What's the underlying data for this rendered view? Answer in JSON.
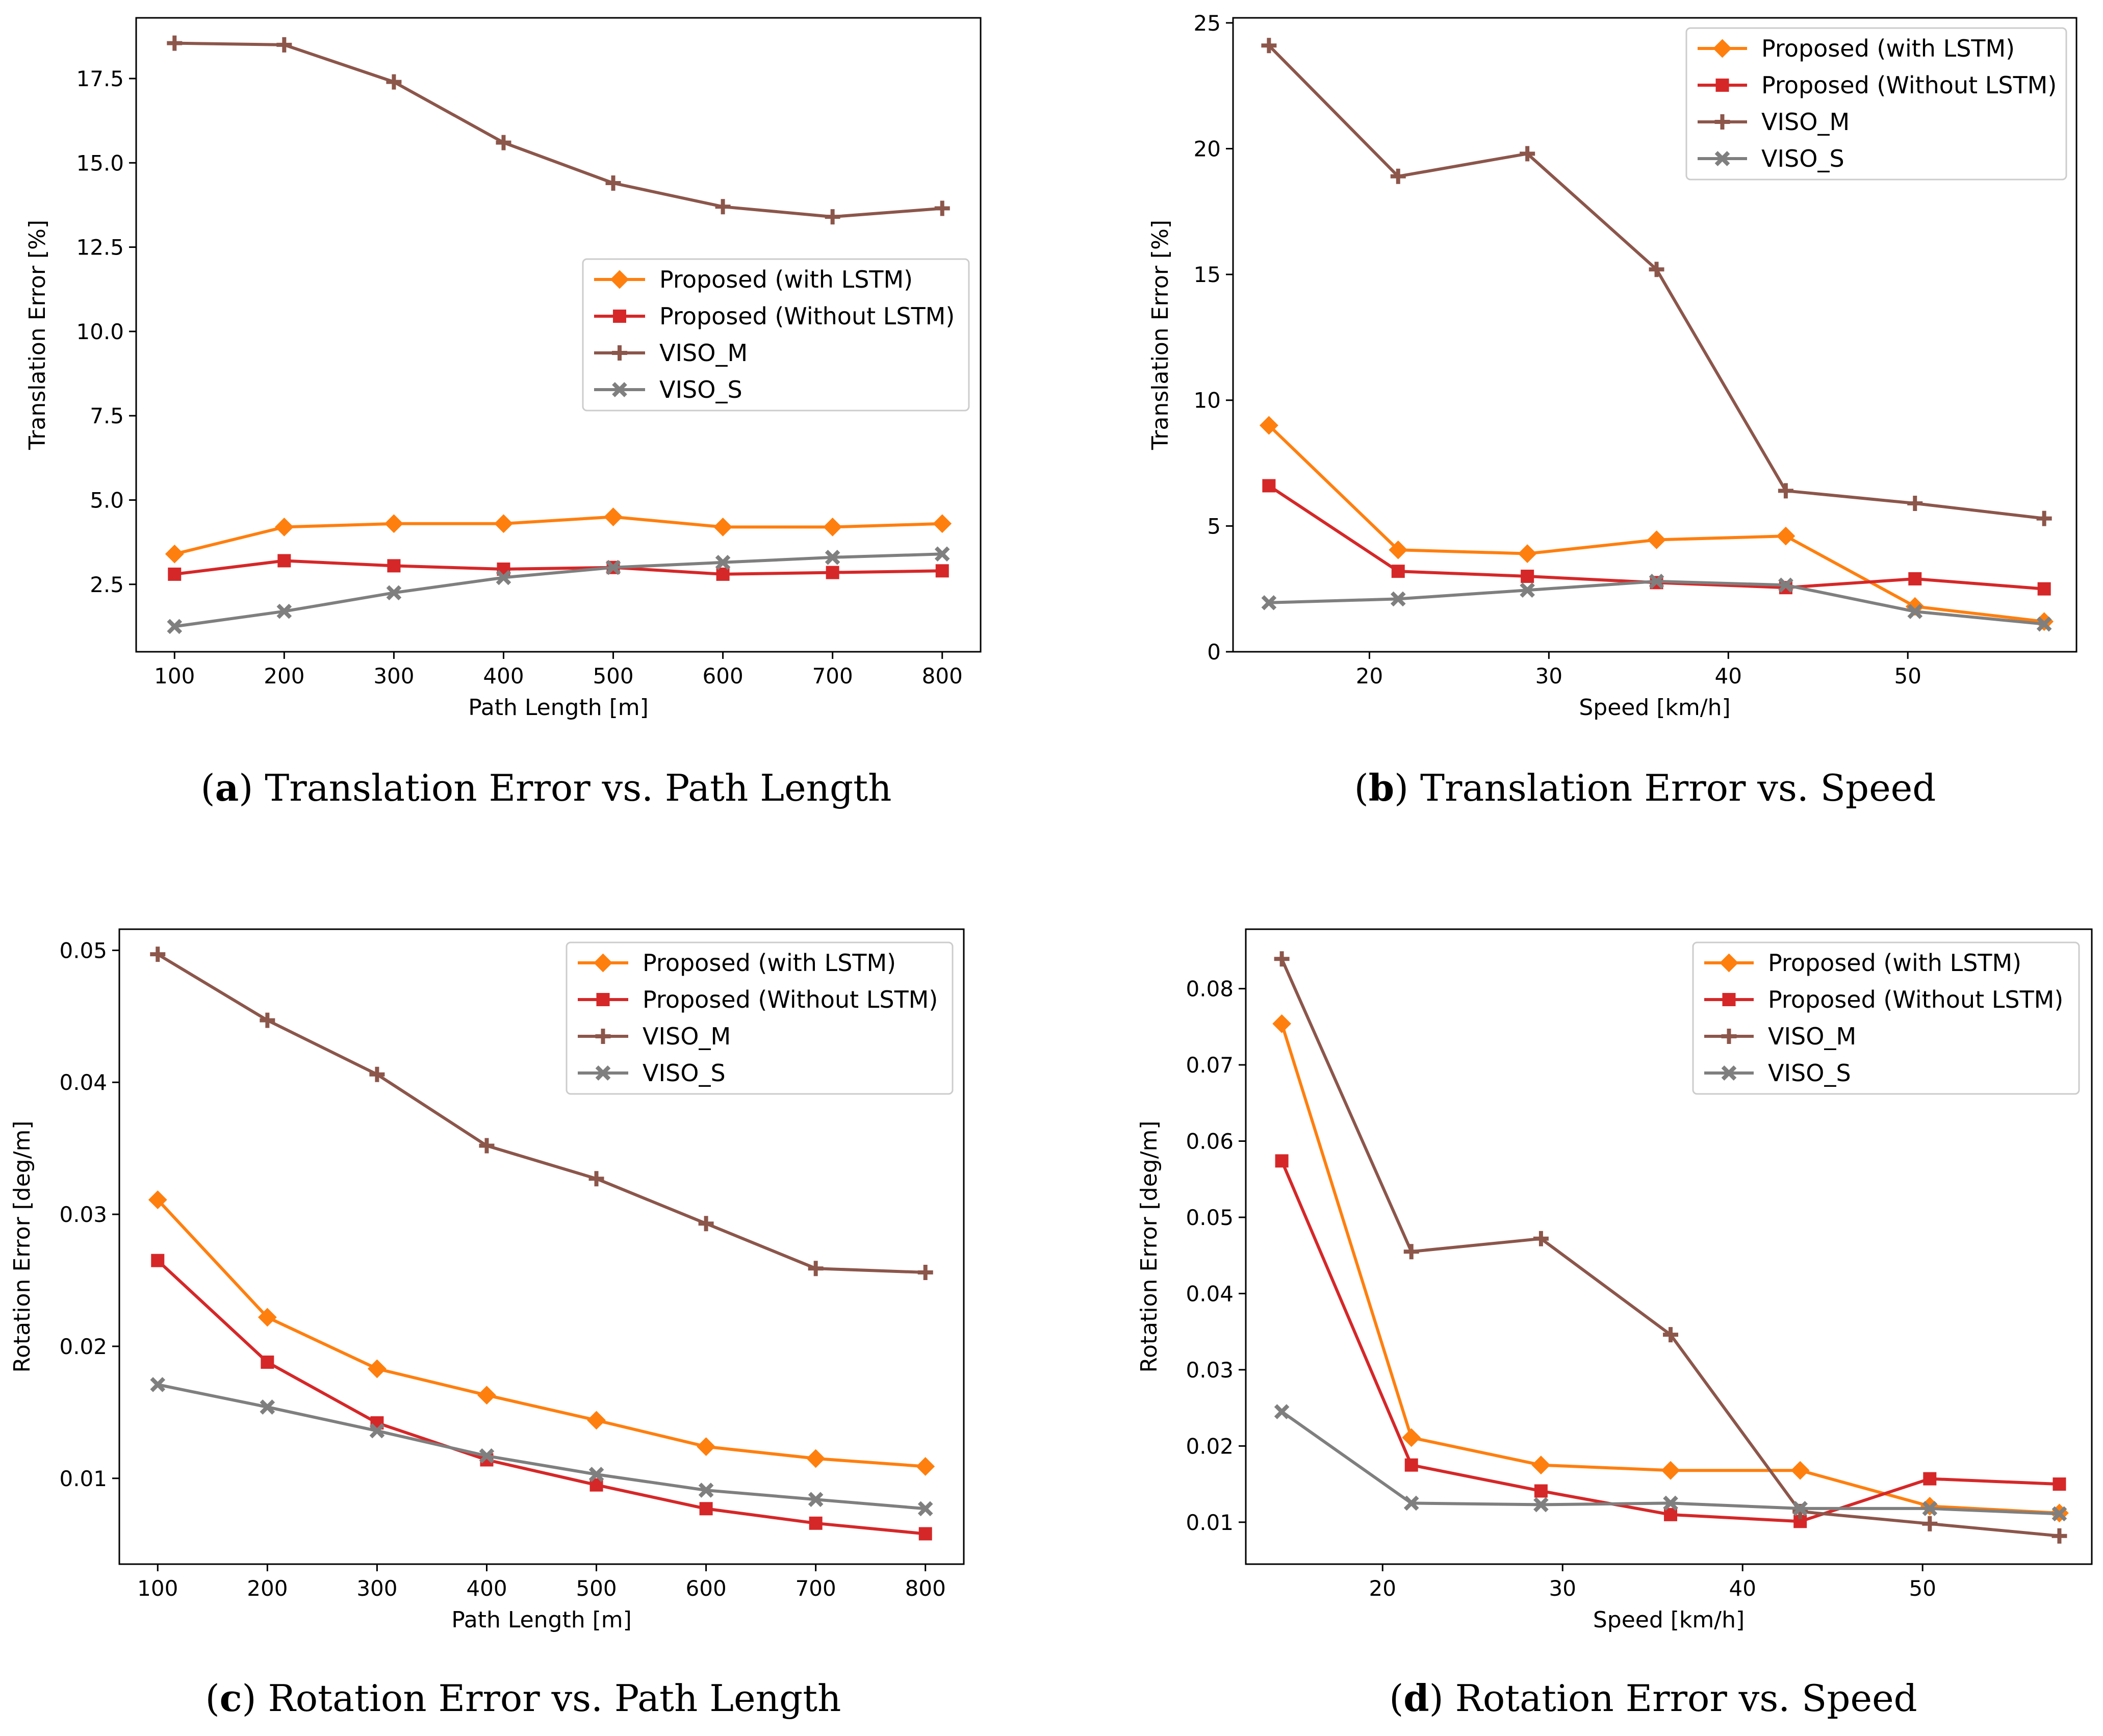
{
  "chart_data": [
    {
      "id": "a",
      "type": "line",
      "caption_letter": "a",
      "caption": "Translation Error vs. Path Length",
      "title": "",
      "xlabel": "Path Length [m]",
      "ylabel": "Translation Error [%]",
      "xlim": [
        65,
        835
      ],
      "ylim": [
        0.5,
        19.3
      ],
      "xticks": [
        100,
        200,
        300,
        400,
        500,
        600,
        700,
        800
      ],
      "yticks": [
        2.5,
        5.0,
        7.5,
        10.0,
        12.5,
        15.0,
        17.5
      ],
      "ytick_labels": [
        "2.5",
        "5.0",
        "7.5",
        "10.0",
        "12.5",
        "15.0",
        "17.5"
      ],
      "xtick_labels": [
        "100",
        "200",
        "300",
        "400",
        "500",
        "600",
        "700",
        "800"
      ],
      "legend_placement": "center-right",
      "x": [
        100,
        200,
        300,
        400,
        500,
        600,
        700,
        800
      ],
      "series": [
        {
          "name": "Proposed (with LSTM)",
          "values": [
            3.4,
            4.2,
            4.3,
            4.3,
            4.5,
            4.2,
            4.2,
            4.3
          ]
        },
        {
          "name": "Proposed (Without LSTM)",
          "values": [
            2.8,
            3.2,
            3.05,
            2.95,
            3.0,
            2.8,
            2.85,
            2.9
          ]
        },
        {
          "name": "VISO_M",
          "values": [
            18.55,
            18.5,
            17.4,
            15.6,
            14.4,
            13.7,
            13.4,
            13.65
          ]
        },
        {
          "name": "VISO_S",
          "values": [
            1.25,
            1.7,
            2.25,
            2.7,
            3.0,
            3.15,
            3.3,
            3.4
          ]
        }
      ]
    },
    {
      "id": "b",
      "type": "line",
      "caption_letter": "b",
      "caption": "Translation Error vs. Speed",
      "title": "",
      "xlabel": "Speed [km/h]",
      "ylabel": "Translation Error [%]",
      "xlim": [
        12.4,
        59.4
      ],
      "ylim": [
        0,
        25.2
      ],
      "xticks": [
        20,
        30,
        40,
        50
      ],
      "yticks": [
        0,
        5,
        10,
        15,
        20,
        25
      ],
      "xtick_labels": [
        "20",
        "30",
        "40",
        "50"
      ],
      "ytick_labels": [
        "0",
        "5",
        "10",
        "15",
        "20",
        "25"
      ],
      "legend_placement": "top-right",
      "x": [
        14.4,
        21.6,
        28.8,
        36.0,
        43.2,
        50.4,
        57.6
      ],
      "series": [
        {
          "name": "Proposed (with LSTM)",
          "values": [
            9.0,
            4.05,
            3.9,
            4.45,
            4.6,
            1.8,
            1.2
          ]
        },
        {
          "name": "Proposed (Without LSTM)",
          "values": [
            6.6,
            3.2,
            3.0,
            2.75,
            2.55,
            2.9,
            2.5
          ]
        },
        {
          "name": "VISO_M",
          "values": [
            24.1,
            18.9,
            19.8,
            15.2,
            6.4,
            5.9,
            5.3
          ]
        },
        {
          "name": "VISO_S",
          "values": [
            1.95,
            2.1,
            2.45,
            2.8,
            2.65,
            1.6,
            1.1
          ]
        }
      ]
    },
    {
      "id": "c",
      "type": "line",
      "caption_letter": "c",
      "caption": "Rotation Error vs. Path Length",
      "title": "",
      "xlabel": "Path Length [m]",
      "ylabel": "Rotation Error [deg/m]",
      "xlim": [
        65,
        835
      ],
      "ylim": [
        0.0035,
        0.0516
      ],
      "xticks": [
        100,
        200,
        300,
        400,
        500,
        600,
        700,
        800
      ],
      "yticks": [
        0.01,
        0.02,
        0.03,
        0.04,
        0.05
      ],
      "xtick_labels": [
        "100",
        "200",
        "300",
        "400",
        "500",
        "600",
        "700",
        "800"
      ],
      "ytick_labels": [
        "0.01",
        "0.02",
        "0.03",
        "0.04",
        "0.05"
      ],
      "legend_placement": "top-right",
      "x": [
        100,
        200,
        300,
        400,
        500,
        600,
        700,
        800
      ],
      "series": [
        {
          "name": "Proposed (with LSTM)",
          "values": [
            0.0311,
            0.0222,
            0.0183,
            0.0163,
            0.0144,
            0.0124,
            0.0115,
            0.0109
          ]
        },
        {
          "name": "Proposed (Without LSTM)",
          "values": [
            0.0265,
            0.0188,
            0.0142,
            0.0114,
            0.0095,
            0.0077,
            0.0066,
            0.0058
          ]
        },
        {
          "name": "VISO_M",
          "values": [
            0.0497,
            0.0447,
            0.0406,
            0.0352,
            0.0327,
            0.0293,
            0.0259,
            0.0256
          ]
        },
        {
          "name": "VISO_S",
          "values": [
            0.0171,
            0.0154,
            0.0136,
            0.0117,
            0.0103,
            0.0091,
            0.0084,
            0.0077
          ]
        }
      ]
    },
    {
      "id": "d",
      "type": "line",
      "caption_letter": "d",
      "caption": "Rotation Error vs. Speed",
      "title": "",
      "xlabel": "Speed [km/h]",
      "ylabel": "Rotation Error [deg/m]",
      "xlim": [
        12.4,
        59.4
      ],
      "ylim": [
        0.0045,
        0.0878
      ],
      "xticks": [
        20,
        30,
        40,
        50
      ],
      "yticks": [
        0.01,
        0.02,
        0.03,
        0.04,
        0.05,
        0.06,
        0.07,
        0.08
      ],
      "xtick_labels": [
        "20",
        "30",
        "40",
        "50"
      ],
      "ytick_labels": [
        "0.01",
        "0.02",
        "0.03",
        "0.04",
        "0.05",
        "0.06",
        "0.07",
        "0.08"
      ],
      "legend_placement": "top-right",
      "x": [
        14.4,
        21.6,
        28.8,
        36.0,
        43.2,
        50.4,
        57.6
      ],
      "series": [
        {
          "name": "Proposed (with LSTM)",
          "values": [
            0.0754,
            0.0211,
            0.0175,
            0.0168,
            0.0168,
            0.0121,
            0.0112
          ]
        },
        {
          "name": "Proposed (Without LSTM)",
          "values": [
            0.0574,
            0.0175,
            0.0141,
            0.011,
            0.0101,
            0.0157,
            0.015
          ]
        },
        {
          "name": "VISO_M",
          "values": [
            0.0839,
            0.0455,
            0.0472,
            0.0346,
            0.0114,
            0.0098,
            0.0082
          ]
        },
        {
          "name": "VISO_S",
          "values": [
            0.0245,
            0.0125,
            0.0123,
            0.0125,
            0.0118,
            0.0118,
            0.0111
          ]
        }
      ]
    }
  ],
  "styles": {
    "series_colors": [
      "#ff7f0e",
      "#d62728",
      "#8c564b",
      "#7f7f7f"
    ],
    "series_markers": [
      "diamond",
      "square",
      "plus",
      "x"
    ],
    "axis_color": "#000000",
    "background": "#ffffff"
  }
}
